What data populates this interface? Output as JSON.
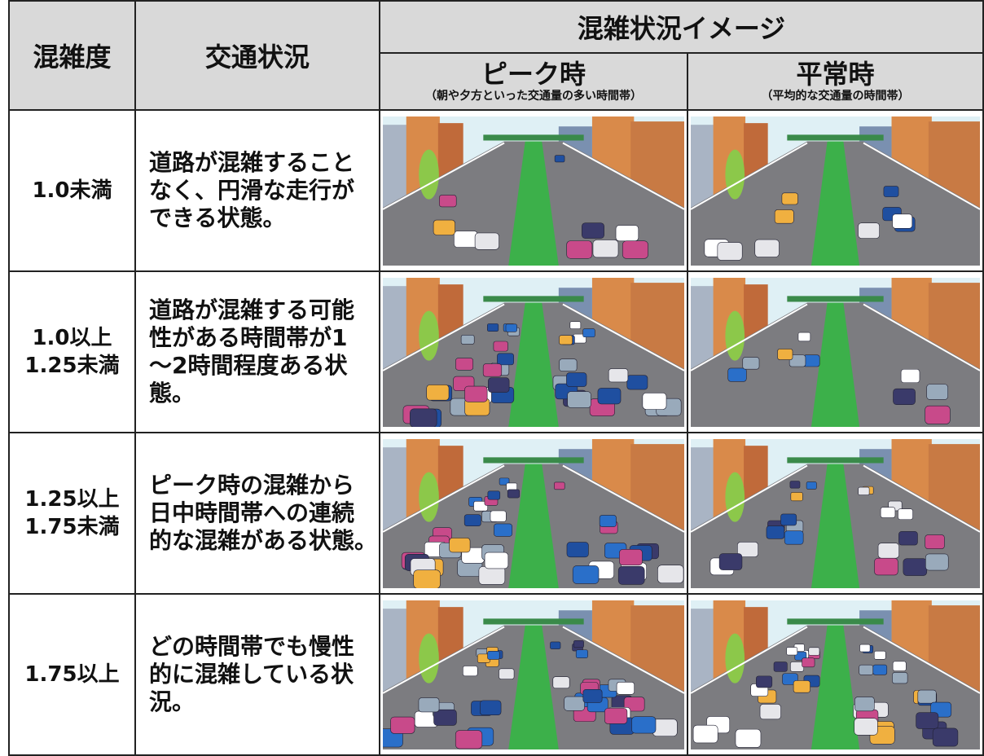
{
  "table": {
    "header": {
      "congestion": "混雑度",
      "traffic": "交通状況",
      "image": "混雑状況イメージ",
      "peak": "ピーク時",
      "peak_note": "（朝や夕方といった交通量の多い時間帯）",
      "normal": "平常時",
      "normal_note": "（平均的な交通量の時間帯）"
    },
    "rows": [
      {
        "degree": [
          "1.0未満"
        ],
        "status": [
          "道路が混雑すること",
          "なく、円滑な走行が",
          "できる状態。"
        ]
      },
      {
        "degree": [
          "1.0以上",
          "1.25未満"
        ],
        "status": [
          "道路が混雑する可能",
          "性がある時間帯が1",
          "～2時間程度ある状",
          "態。"
        ]
      },
      {
        "degree": [
          "1.25以上",
          "1.75未満"
        ],
        "status": [
          "ピーク時の混雑から",
          "日中時間帯への連続",
          "的な混雑がある状態。"
        ]
      },
      {
        "degree": [
          "1.75以上"
        ],
        "status": [
          "どの時間帯でも慢性",
          "的に混雑している状",
          "況。"
        ]
      }
    ]
  }
}
